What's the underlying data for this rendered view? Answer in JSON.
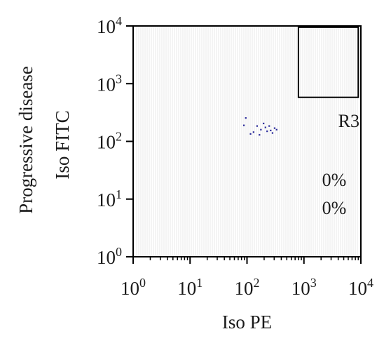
{
  "chart_data": {
    "type": "scatter",
    "xlabel": "Iso PE",
    "ylabel": "Iso FITC",
    "side_label": "Progressive disease",
    "x_scale": "log",
    "y_scale": "log",
    "xlim": [
      1,
      10000
    ],
    "ylim": [
      1,
      10000
    ],
    "x_ticks": [
      {
        "value": 1,
        "base": "10",
        "exp": "0"
      },
      {
        "value": 10,
        "base": "10",
        "exp": "1"
      },
      {
        "value": 100,
        "base": "10",
        "exp": "2"
      },
      {
        "value": 1000,
        "base": "10",
        "exp": "3"
      },
      {
        "value": 10000,
        "base": "10",
        "exp": "4"
      }
    ],
    "y_ticks": [
      {
        "value": 1,
        "base": "10",
        "exp": "0"
      },
      {
        "value": 10,
        "base": "10",
        "exp": "1"
      },
      {
        "value": 100,
        "base": "10",
        "exp": "2"
      },
      {
        "value": 1000,
        "base": "10",
        "exp": "3"
      },
      {
        "value": 10000,
        "base": "10",
        "exp": "4"
      }
    ],
    "gate": {
      "name": "R3",
      "x_range": [
        800,
        9000
      ],
      "y_range": [
        580,
        9500
      ]
    },
    "annotations": [
      "0%",
      "0%"
    ],
    "points": [
      {
        "x": 95,
        "y": 255
      },
      {
        "x": 88,
        "y": 190
      },
      {
        "x": 130,
        "y": 145
      },
      {
        "x": 150,
        "y": 185
      },
      {
        "x": 175,
        "y": 160
      },
      {
        "x": 195,
        "y": 205
      },
      {
        "x": 210,
        "y": 175
      },
      {
        "x": 225,
        "y": 150
      },
      {
        "x": 245,
        "y": 185
      },
      {
        "x": 260,
        "y": 155
      },
      {
        "x": 280,
        "y": 140
      },
      {
        "x": 305,
        "y": 170
      },
      {
        "x": 330,
        "y": 160
      },
      {
        "x": 165,
        "y": 130
      },
      {
        "x": 115,
        "y": 135
      }
    ],
    "colors": {
      "points": "#2a2a9a",
      "grid": "#e9e9e9",
      "frame": "#000000"
    },
    "grid": true
  }
}
